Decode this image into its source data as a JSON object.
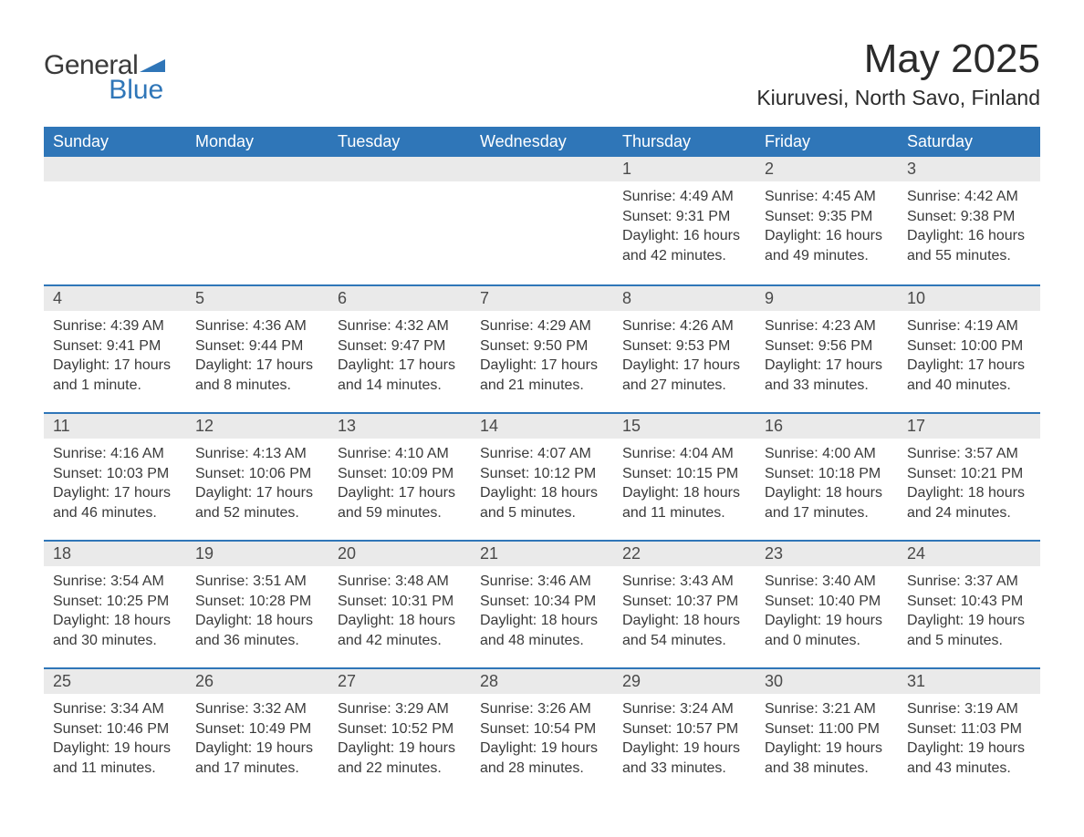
{
  "logo": {
    "word1": "General",
    "word2": "Blue",
    "icon_color": "#2f76b8",
    "text_color": "#3a3a3a"
  },
  "title": "May 2025",
  "location": "Kiuruvesi, North Savo, Finland",
  "colors": {
    "header_bg": "#2f76b8",
    "header_fg": "#ffffff",
    "daynum_bg": "#eaeaea",
    "text": "#3a3a3a",
    "row_border": "#2f76b8",
    "page_bg": "#ffffff"
  },
  "fonts": {
    "title_size_pt": 33,
    "location_size_pt": 17,
    "header_size_pt": 14,
    "daynum_size_pt": 14,
    "body_size_pt": 12
  },
  "columns": [
    "Sunday",
    "Monday",
    "Tuesday",
    "Wednesday",
    "Thursday",
    "Friday",
    "Saturday"
  ],
  "weeks": [
    [
      null,
      null,
      null,
      null,
      {
        "day": "1",
        "sunrise": "Sunrise: 4:49 AM",
        "sunset": "Sunset: 9:31 PM",
        "daylight": "Daylight: 16 hours and 42 minutes."
      },
      {
        "day": "2",
        "sunrise": "Sunrise: 4:45 AM",
        "sunset": "Sunset: 9:35 PM",
        "daylight": "Daylight: 16 hours and 49 minutes."
      },
      {
        "day": "3",
        "sunrise": "Sunrise: 4:42 AM",
        "sunset": "Sunset: 9:38 PM",
        "daylight": "Daylight: 16 hours and 55 minutes."
      }
    ],
    [
      {
        "day": "4",
        "sunrise": "Sunrise: 4:39 AM",
        "sunset": "Sunset: 9:41 PM",
        "daylight": "Daylight: 17 hours and 1 minute."
      },
      {
        "day": "5",
        "sunrise": "Sunrise: 4:36 AM",
        "sunset": "Sunset: 9:44 PM",
        "daylight": "Daylight: 17 hours and 8 minutes."
      },
      {
        "day": "6",
        "sunrise": "Sunrise: 4:32 AM",
        "sunset": "Sunset: 9:47 PM",
        "daylight": "Daylight: 17 hours and 14 minutes."
      },
      {
        "day": "7",
        "sunrise": "Sunrise: 4:29 AM",
        "sunset": "Sunset: 9:50 PM",
        "daylight": "Daylight: 17 hours and 21 minutes."
      },
      {
        "day": "8",
        "sunrise": "Sunrise: 4:26 AM",
        "sunset": "Sunset: 9:53 PM",
        "daylight": "Daylight: 17 hours and 27 minutes."
      },
      {
        "day": "9",
        "sunrise": "Sunrise: 4:23 AM",
        "sunset": "Sunset: 9:56 PM",
        "daylight": "Daylight: 17 hours and 33 minutes."
      },
      {
        "day": "10",
        "sunrise": "Sunrise: 4:19 AM",
        "sunset": "Sunset: 10:00 PM",
        "daylight": "Daylight: 17 hours and 40 minutes."
      }
    ],
    [
      {
        "day": "11",
        "sunrise": "Sunrise: 4:16 AM",
        "sunset": "Sunset: 10:03 PM",
        "daylight": "Daylight: 17 hours and 46 minutes."
      },
      {
        "day": "12",
        "sunrise": "Sunrise: 4:13 AM",
        "sunset": "Sunset: 10:06 PM",
        "daylight": "Daylight: 17 hours and 52 minutes."
      },
      {
        "day": "13",
        "sunrise": "Sunrise: 4:10 AM",
        "sunset": "Sunset: 10:09 PM",
        "daylight": "Daylight: 17 hours and 59 minutes."
      },
      {
        "day": "14",
        "sunrise": "Sunrise: 4:07 AM",
        "sunset": "Sunset: 10:12 PM",
        "daylight": "Daylight: 18 hours and 5 minutes."
      },
      {
        "day": "15",
        "sunrise": "Sunrise: 4:04 AM",
        "sunset": "Sunset: 10:15 PM",
        "daylight": "Daylight: 18 hours and 11 minutes."
      },
      {
        "day": "16",
        "sunrise": "Sunrise: 4:00 AM",
        "sunset": "Sunset: 10:18 PM",
        "daylight": "Daylight: 18 hours and 17 minutes."
      },
      {
        "day": "17",
        "sunrise": "Sunrise: 3:57 AM",
        "sunset": "Sunset: 10:21 PM",
        "daylight": "Daylight: 18 hours and 24 minutes."
      }
    ],
    [
      {
        "day": "18",
        "sunrise": "Sunrise: 3:54 AM",
        "sunset": "Sunset: 10:25 PM",
        "daylight": "Daylight: 18 hours and 30 minutes."
      },
      {
        "day": "19",
        "sunrise": "Sunrise: 3:51 AM",
        "sunset": "Sunset: 10:28 PM",
        "daylight": "Daylight: 18 hours and 36 minutes."
      },
      {
        "day": "20",
        "sunrise": "Sunrise: 3:48 AM",
        "sunset": "Sunset: 10:31 PM",
        "daylight": "Daylight: 18 hours and 42 minutes."
      },
      {
        "day": "21",
        "sunrise": "Sunrise: 3:46 AM",
        "sunset": "Sunset: 10:34 PM",
        "daylight": "Daylight: 18 hours and 48 minutes."
      },
      {
        "day": "22",
        "sunrise": "Sunrise: 3:43 AM",
        "sunset": "Sunset: 10:37 PM",
        "daylight": "Daylight: 18 hours and 54 minutes."
      },
      {
        "day": "23",
        "sunrise": "Sunrise: 3:40 AM",
        "sunset": "Sunset: 10:40 PM",
        "daylight": "Daylight: 19 hours and 0 minutes."
      },
      {
        "day": "24",
        "sunrise": "Sunrise: 3:37 AM",
        "sunset": "Sunset: 10:43 PM",
        "daylight": "Daylight: 19 hours and 5 minutes."
      }
    ],
    [
      {
        "day": "25",
        "sunrise": "Sunrise: 3:34 AM",
        "sunset": "Sunset: 10:46 PM",
        "daylight": "Daylight: 19 hours and 11 minutes."
      },
      {
        "day": "26",
        "sunrise": "Sunrise: 3:32 AM",
        "sunset": "Sunset: 10:49 PM",
        "daylight": "Daylight: 19 hours and 17 minutes."
      },
      {
        "day": "27",
        "sunrise": "Sunrise: 3:29 AM",
        "sunset": "Sunset: 10:52 PM",
        "daylight": "Daylight: 19 hours and 22 minutes."
      },
      {
        "day": "28",
        "sunrise": "Sunrise: 3:26 AM",
        "sunset": "Sunset: 10:54 PM",
        "daylight": "Daylight: 19 hours and 28 minutes."
      },
      {
        "day": "29",
        "sunrise": "Sunrise: 3:24 AM",
        "sunset": "Sunset: 10:57 PM",
        "daylight": "Daylight: 19 hours and 33 minutes."
      },
      {
        "day": "30",
        "sunrise": "Sunrise: 3:21 AM",
        "sunset": "Sunset: 11:00 PM",
        "daylight": "Daylight: 19 hours and 38 minutes."
      },
      {
        "day": "31",
        "sunrise": "Sunrise: 3:19 AM",
        "sunset": "Sunset: 11:03 PM",
        "daylight": "Daylight: 19 hours and 43 minutes."
      }
    ]
  ]
}
